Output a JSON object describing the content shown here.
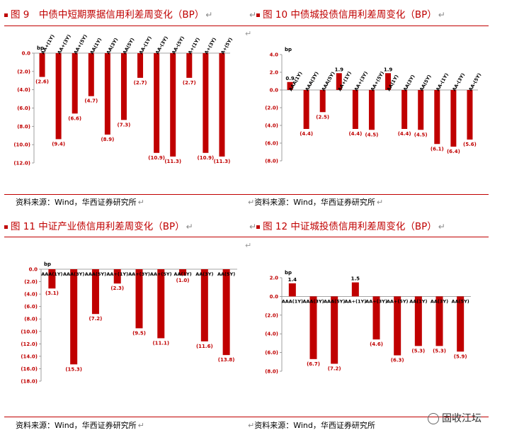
{
  "panels": [
    {
      "title": "图 9　中债中短期票据信用利差周变化（BP）",
      "source": "资料来源：Wind，华西证券研究所",
      "chart_data": {
        "type": "bar",
        "ylabel": "bp",
        "ylim": [
          -12.0,
          0.0
        ],
        "ytick_step": 2,
        "ytick_labels": [
          "0.0",
          "(2.0)",
          "(4.0)",
          "(6.0)",
          "(8.0)",
          "(10.0)",
          "(12.0)"
        ],
        "categories": [
          "AA+(1Y)",
          "AA+(3Y)",
          "AA+(5Y)",
          "AA(1Y)",
          "AA(3Y)",
          "AA(5Y)",
          "AA-(1Y)",
          "AA-(3Y)",
          "AA-(5Y)",
          "A+(1Y)",
          "A+(3Y)",
          "A+(5Y)"
        ],
        "values": [
          -2.6,
          -9.4,
          -6.6,
          -4.7,
          -8.9,
          -7.3,
          -2.7,
          -10.9,
          -11.3,
          -2.7,
          -10.9,
          -11.3
        ],
        "data_labels": [
          "(2.6)",
          "(9.4)",
          "(6.6)",
          "(4.7)",
          "(8.9)",
          "(7.3)",
          "(2.7)",
          "(10.9)",
          "(11.3)",
          "(2.7)",
          "(10.9)",
          "(11.3)"
        ],
        "bar_color": "#c00000"
      }
    },
    {
      "title": "图 10 中债城投债信用利差周变化（BP）",
      "source": "资料来源：Wind，华西证券研究所",
      "chart_data": {
        "type": "bar",
        "ylabel": "bp",
        "ylim": [
          -8.0,
          4.0
        ],
        "ytick_step": 2,
        "ytick_labels": [
          "4.0",
          "2.0",
          "0.0",
          "(2.0)",
          "(4.0)",
          "(6.0)",
          "(8.0)"
        ],
        "categories": [
          "AAA(1Y)",
          "AAA(3Y)",
          "AAA(5Y)",
          "AA+(1Y)",
          "AA+(3Y)",
          "AA+(5Y)",
          "AA(1Y)",
          "AA(3Y)",
          "AA(5Y)",
          "AA-(1Y)",
          "AA-(3Y)",
          "AA-(5Y)"
        ],
        "values": [
          0.9,
          -4.4,
          -2.5,
          1.9,
          -4.4,
          -4.5,
          1.9,
          -4.4,
          -4.5,
          -6.1,
          -6.4,
          -5.6
        ],
        "data_labels": [
          "0.9",
          "(4.4)",
          "(2.5)",
          "1.9",
          "(4.4)",
          "(4.5)",
          "1.9",
          "(4.4)",
          "(4.5)",
          "(6.1)",
          "(6.4)",
          "(5.6)"
        ],
        "bar_color": "#c00000"
      }
    },
    {
      "title": "图 11 中证产业债信用利差周变化（BP）",
      "source": "资料来源：Wind，华西证券研究所",
      "chart_data": {
        "type": "bar",
        "ylabel": "bp",
        "ylim": [
          -18.0,
          0.0
        ],
        "ytick_step": 2,
        "ytick_labels": [
          "0.0",
          "(2.0)",
          "(4.0)",
          "(6.0)",
          "(8.0)",
          "(10.0)",
          "(12.0)",
          "(14.0)",
          "(16.0)",
          "(18.0)"
        ],
        "categories": [
          "AAA(1Y)",
          "AAA(3Y)",
          "AAA(5Y)",
          "AA+(1Y)",
          "AA+(3Y)",
          "AA+(5Y)",
          "AA(1Y)",
          "AA(3Y)",
          "AA(5Y)"
        ],
        "values": [
          -3.1,
          -15.3,
          -7.2,
          -2.3,
          -9.5,
          -11.1,
          -1.0,
          -11.6,
          -13.8
        ],
        "data_labels": [
          "(3.1)",
          "(15.3)",
          "(7.2)",
          "(2.3)",
          "(9.5)",
          "(11.1)",
          "(1.0)",
          "(11.6)",
          "(13.8)"
        ],
        "bar_color": "#c00000"
      }
    },
    {
      "title": "图 12 中证城投债信用利差周变化（BP）",
      "source": "资料来源：Wind，华西证券研究所",
      "chart_data": {
        "type": "bar",
        "ylabel": "bp",
        "ylim": [
          -8.0,
          2.0
        ],
        "ytick_step": 2,
        "ytick_labels": [
          "2.0",
          "0.0",
          "(2.0)",
          "(4.0)",
          "(6.0)",
          "(8.0)"
        ],
        "categories": [
          "AAA(1Y)",
          "AAA(3Y)",
          "AAA(5Y)",
          "AA+(1Y)",
          "AA+(3Y)",
          "AA+(5Y)",
          "AA(1Y)",
          "AA(3Y)",
          "AA(5Y)"
        ],
        "values": [
          1.4,
          -6.7,
          -7.2,
          1.5,
          -4.6,
          -6.3,
          -5.3,
          -5.3,
          -5.9
        ],
        "data_labels": [
          "1.4",
          "(6.7)",
          "(7.2)",
          "1.5",
          "(4.6)",
          "(6.3)",
          "(5.3)",
          "(5.3)",
          "(5.9)"
        ],
        "bar_color": "#c00000"
      }
    }
  ],
  "watermark": "固收江坛"
}
